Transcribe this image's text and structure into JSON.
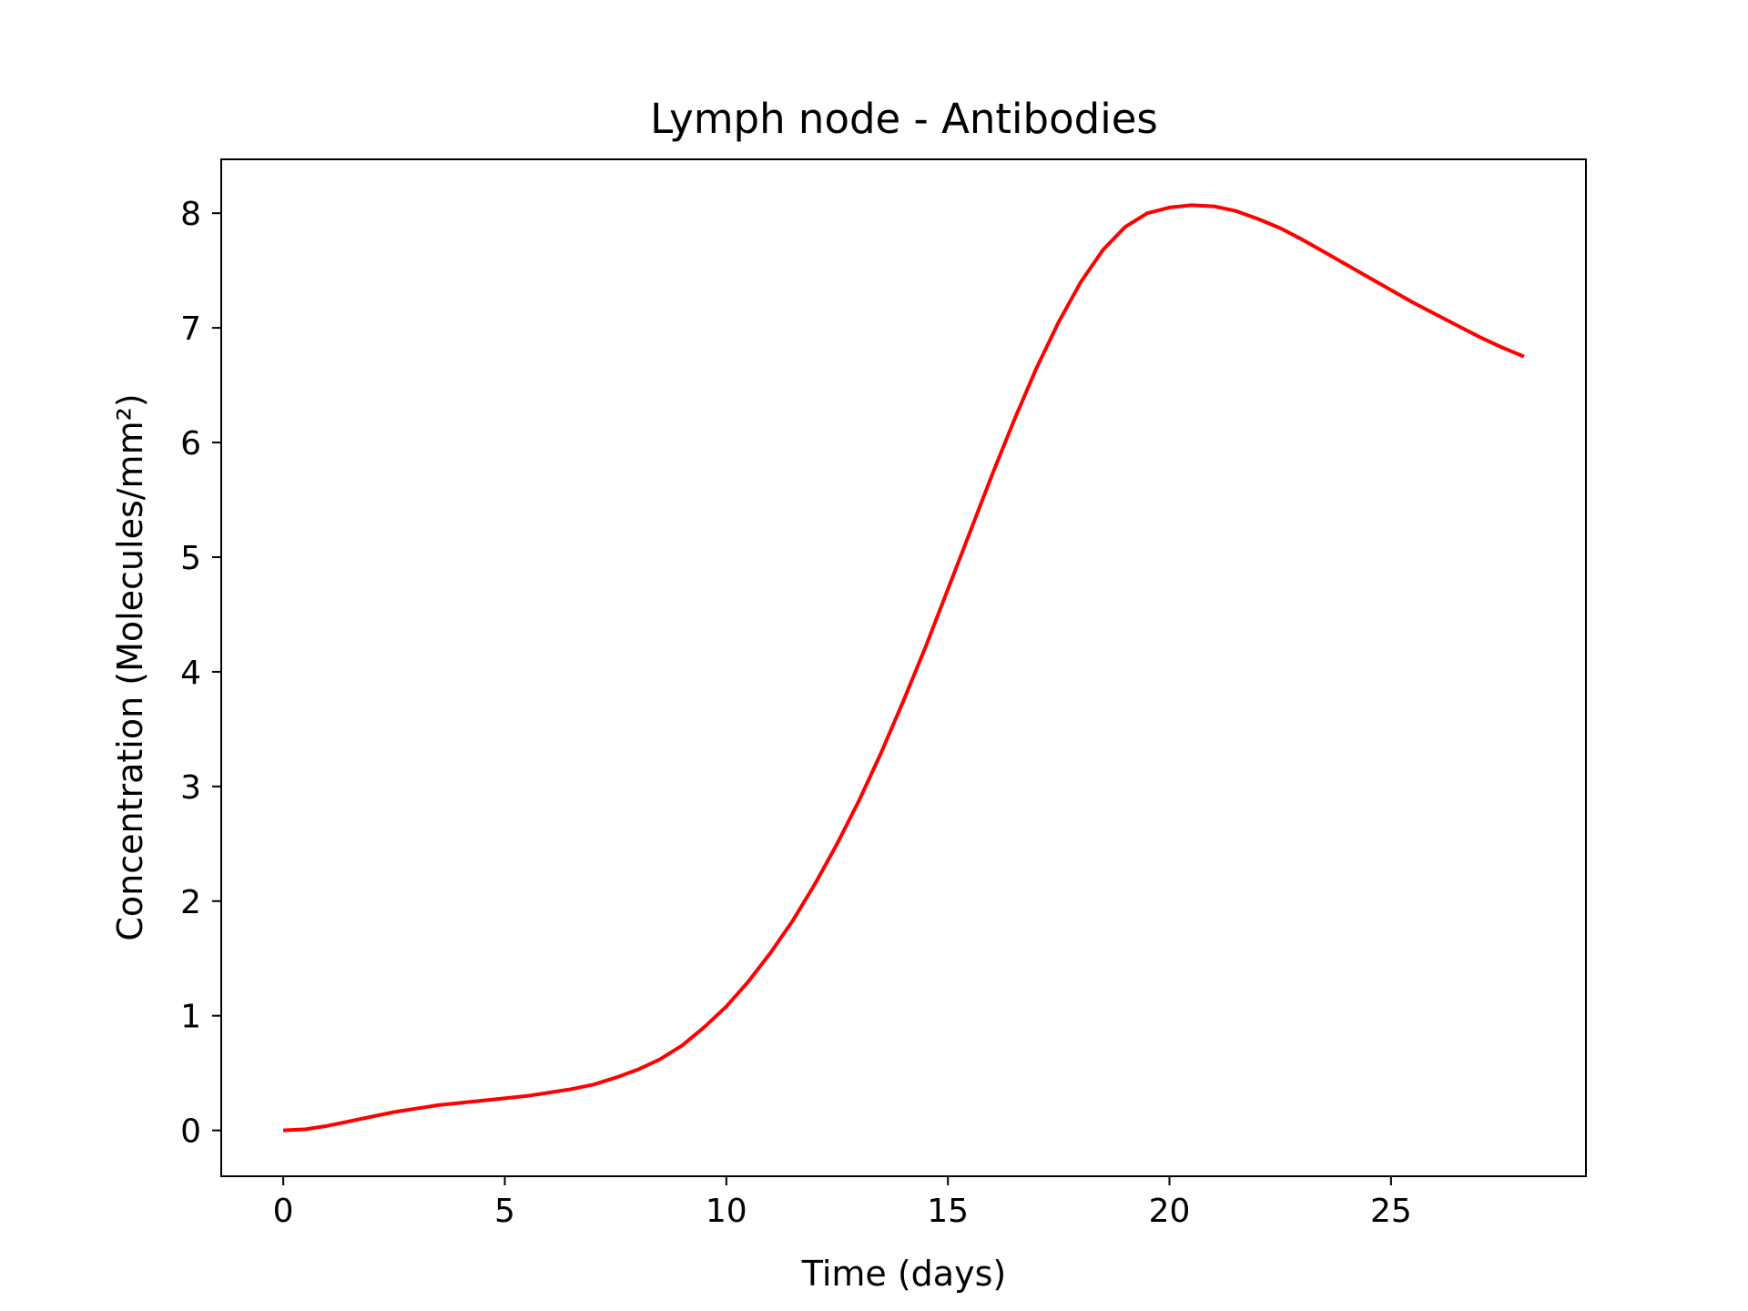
{
  "chart_data": {
    "type": "line",
    "title": "Lymph node - Antibodies",
    "xlabel": "Time (days)",
    "ylabel": "Concentration (Molecules/mm²)",
    "xlim": [
      -1.4,
      29.4
    ],
    "ylim": [
      -0.4,
      8.47
    ],
    "xticks": [
      0,
      5,
      10,
      15,
      20,
      25
    ],
    "yticks": [
      0,
      1,
      2,
      3,
      4,
      5,
      6,
      7,
      8
    ],
    "xtick_labels": [
      "0",
      "5",
      "10",
      "15",
      "20",
      "25"
    ],
    "ytick_labels": [
      "0",
      "1",
      "2",
      "3",
      "4",
      "5",
      "6",
      "7",
      "8"
    ],
    "grid": false,
    "series": [
      {
        "color": "#ff0000",
        "x": [
          0,
          0.5,
          1,
          1.5,
          2,
          2.5,
          3,
          3.5,
          4,
          4.5,
          5,
          5.5,
          6,
          6.5,
          7,
          7.5,
          8,
          8.5,
          9,
          9.5,
          10,
          10.5,
          11,
          11.5,
          12,
          12.5,
          13,
          13.5,
          14,
          14.5,
          15,
          15.5,
          16,
          16.5,
          17,
          17.5,
          18,
          18.5,
          19,
          19.5,
          20,
          20.5,
          21,
          21.5,
          22,
          22.5,
          23,
          23.5,
          24,
          24.5,
          25,
          25.5,
          26,
          26.5,
          27,
          27.5,
          28
        ],
        "y": [
          0,
          0.01,
          0.04,
          0.08,
          0.12,
          0.16,
          0.19,
          0.22,
          0.24,
          0.26,
          0.28,
          0.3,
          0.33,
          0.36,
          0.4,
          0.46,
          0.53,
          0.62,
          0.74,
          0.9,
          1.08,
          1.3,
          1.55,
          1.83,
          2.15,
          2.5,
          2.88,
          3.3,
          3.75,
          4.22,
          4.72,
          5.22,
          5.72,
          6.2,
          6.65,
          7.05,
          7.4,
          7.68,
          7.88,
          8.0,
          8.05,
          8.07,
          8.06,
          8.02,
          7.95,
          7.87,
          7.77,
          7.66,
          7.55,
          7.44,
          7.33,
          7.22,
          7.12,
          7.02,
          6.92,
          6.83,
          6.75
        ]
      }
    ]
  }
}
